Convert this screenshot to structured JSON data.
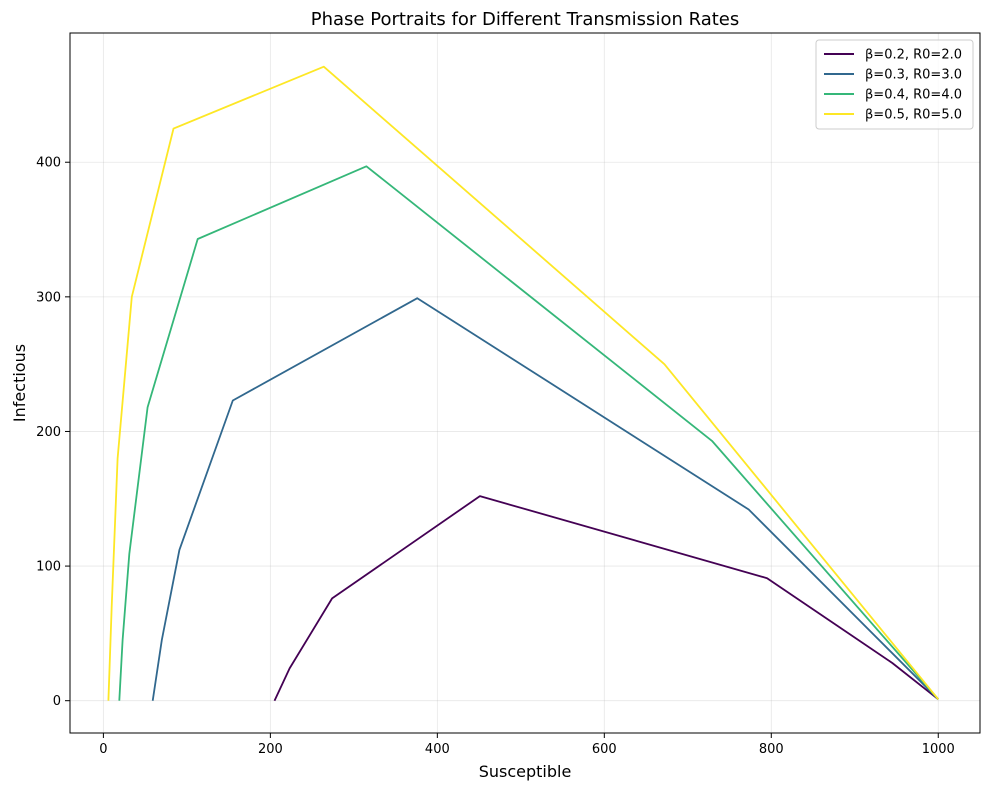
{
  "chart_data": {
    "type": "line",
    "title": "Phase Portraits for Different Transmission Rates",
    "xlabel": "Susceptible",
    "ylabel": "Infectious",
    "xlim": [
      -40,
      1050
    ],
    "ylim": [
      -24,
      496
    ],
    "xticks": [
      0,
      200,
      400,
      600,
      800,
      1000
    ],
    "yticks": [
      0,
      100,
      200,
      300,
      400
    ],
    "grid": true,
    "legend_position": "top-right",
    "series": [
      {
        "name": "β=0.2, R0=2.0",
        "color": "#440154",
        "points": [
          [
            205,
            0
          ],
          [
            223,
            24
          ],
          [
            274,
            76
          ],
          [
            451,
            152
          ],
          [
            795,
            91
          ],
          [
            945,
            28
          ],
          [
            1000,
            1
          ]
        ]
      },
      {
        "name": "β=0.3, R0=3.0",
        "color": "#31688e",
        "points": [
          [
            59,
            0
          ],
          [
            70,
            45
          ],
          [
            91,
            112
          ],
          [
            155,
            223
          ],
          [
            376,
            299
          ],
          [
            773,
            142
          ],
          [
            1000,
            1
          ]
        ]
      },
      {
        "name": "β=0.4, R0=4.0",
        "color": "#35b779",
        "points": [
          [
            19,
            0
          ],
          [
            23,
            45
          ],
          [
            31,
            109
          ],
          [
            53,
            218
          ],
          [
            113,
            343
          ],
          [
            315,
            397
          ],
          [
            729,
            193
          ],
          [
            1000,
            1
          ]
        ]
      },
      {
        "name": "β=0.5, R0=5.0",
        "color": "#fde725",
        "points": [
          [
            6,
            0
          ],
          [
            10,
            70
          ],
          [
            17,
            180
          ],
          [
            34,
            300
          ],
          [
            84,
            425
          ],
          [
            264,
            471
          ],
          [
            672,
            250
          ],
          [
            1000,
            1
          ]
        ]
      }
    ]
  }
}
